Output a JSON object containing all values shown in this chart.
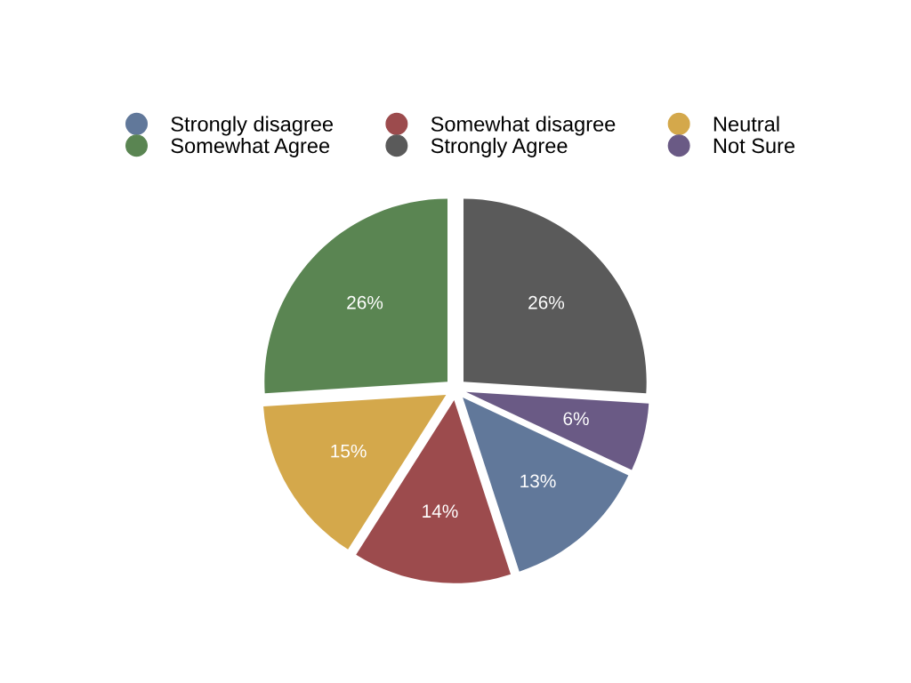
{
  "chart_data": {
    "type": "pie",
    "categories": [
      "Strongly disagree",
      "Somewhat disagree",
      "Neutral",
      "Somewhat Agree",
      "Strongly Agree",
      "Not Sure"
    ],
    "values": [
      13,
      14,
      15,
      26,
      26,
      6
    ],
    "colors": [
      "#61789a",
      "#9c4b4d",
      "#d4a84b",
      "#5a8552",
      "#5a5a5a",
      "#6a5a85"
    ],
    "value_labels": [
      "13%",
      "14%",
      "15%",
      "26%",
      "26%",
      "6%"
    ],
    "legend": "top"
  }
}
